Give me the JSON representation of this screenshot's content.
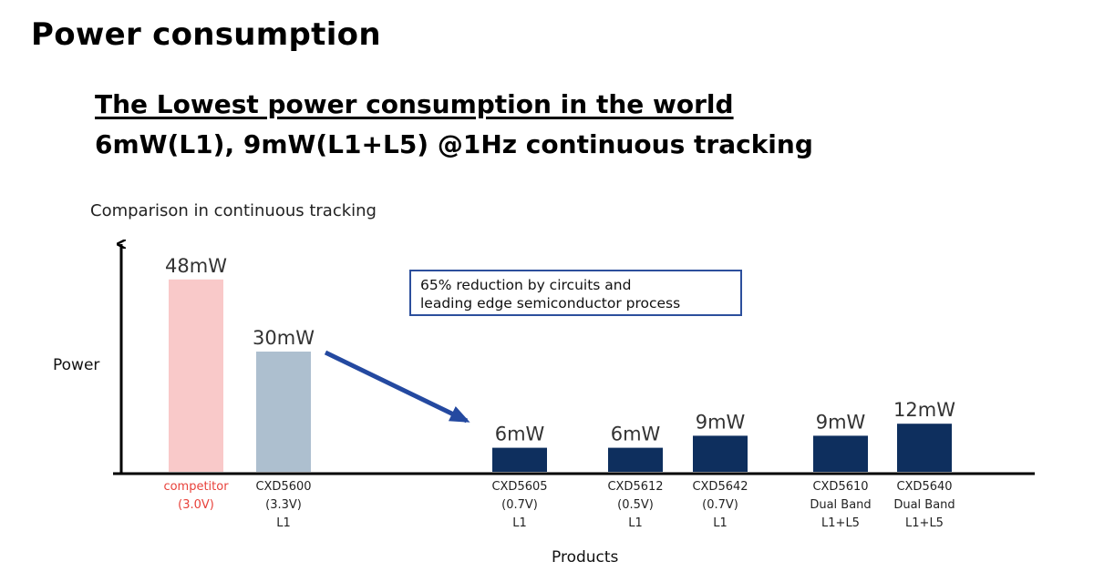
{
  "page": {
    "title": "Power consumption",
    "headline": "The Lowest power consumption in the world",
    "subheadline": "6mW(L1), 9mW(L1+L5) @1Hz continuous tracking"
  },
  "callout": {
    "line1": "65% reduction by circuits and",
    "line2": "leading edge semiconductor process"
  },
  "colors": {
    "competitor": "#f9c9c9",
    "prior": "#adbfcf",
    "sony": "#0e2f5e",
    "arrow": "#2449a0",
    "competitor_text": "#e8413a"
  },
  "chart_data": {
    "type": "bar",
    "title": "Comparison in continuous tracking",
    "xlabel": "Products",
    "ylabel": "Power",
    "unit": "mW",
    "ylim": [
      0,
      52
    ],
    "grid": false,
    "categories": [
      [
        "competitor",
        "(3.0V)"
      ],
      [
        "CXD5600",
        "(3.3V)",
        "L1"
      ],
      [
        "CXD5605",
        "(0.7V)",
        "L1"
      ],
      [
        "CXD5612",
        "(0.5V)",
        "L1"
      ],
      [
        "CXD5642",
        "(0.7V)",
        "L1"
      ],
      [
        "CXD5610",
        "Dual Band",
        "L1+L5"
      ],
      [
        "CXD5640",
        "Dual Band",
        "L1+L5"
      ]
    ],
    "values": [
      48,
      30,
      6,
      6,
      9,
      9,
      12
    ],
    "value_labels": [
      "48mW",
      "30mW",
      "6mW",
      "6mW",
      "9mW",
      "9mW",
      "12mW"
    ],
    "groups": [
      "competitor",
      "prior",
      "sony",
      "sony",
      "sony",
      "sony",
      "sony"
    ]
  }
}
